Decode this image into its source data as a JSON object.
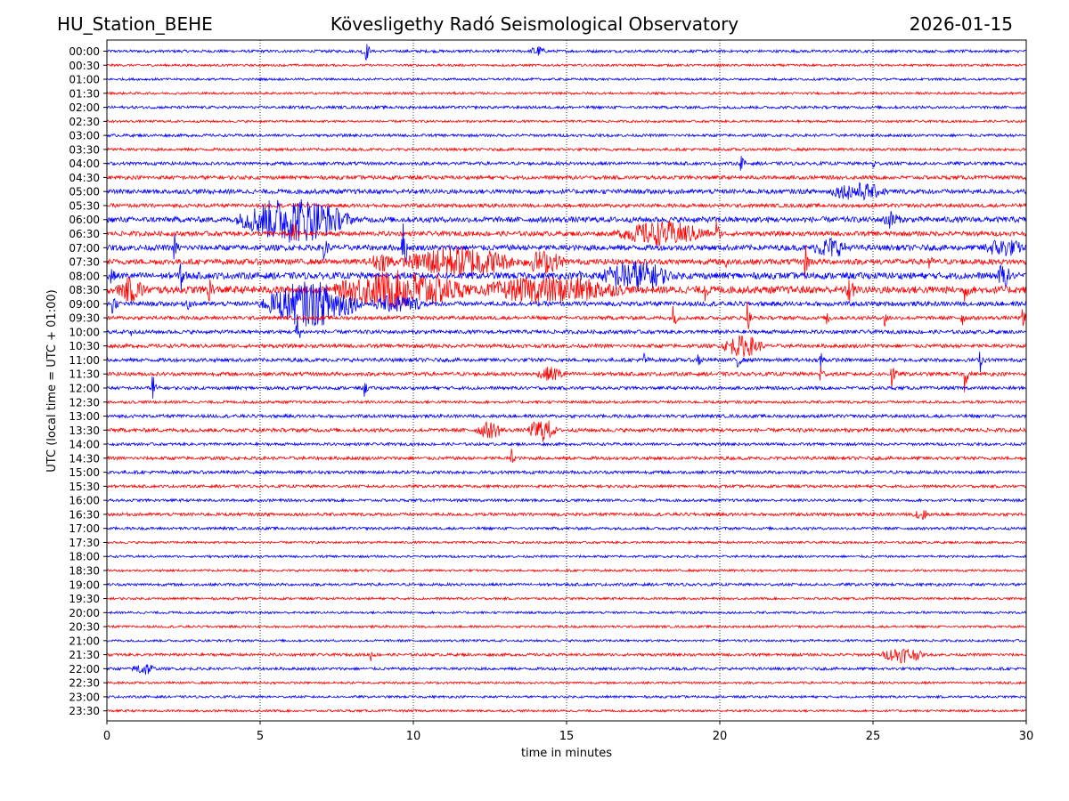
{
  "header": {
    "station": "HU_Station_BEHE",
    "title": "Kövesligethy Radó Seismological Observatory",
    "date": "2026-01-15"
  },
  "chart_data": {
    "type": "line",
    "title": "Kövesligethy Radó Seismological Observatory",
    "xlabel": "time in minutes",
    "ylabel": "UTC (local time = UTC + 01:00)",
    "xlim": [
      0,
      30
    ],
    "xticks": [
      0,
      5,
      10,
      15,
      20,
      25,
      30
    ],
    "grid": "vertical dotted at each x tick",
    "series_colors": [
      "#0000ff",
      "#ff0000"
    ],
    "rows": [
      {
        "label": "00:00",
        "noise": 0.06,
        "events": [
          {
            "t": 8.3,
            "amp": 0.35,
            "dur": 0.3
          },
          {
            "t": 13.8,
            "amp": 0.2,
            "dur": 0.5
          }
        ]
      },
      {
        "label": "00:30",
        "noise": 0.05,
        "events": []
      },
      {
        "label": "01:00",
        "noise": 0.05,
        "events": []
      },
      {
        "label": "01:30",
        "noise": 0.05,
        "events": []
      },
      {
        "label": "02:00",
        "noise": 0.06,
        "events": []
      },
      {
        "label": "02:30",
        "noise": 0.05,
        "events": []
      },
      {
        "label": "03:00",
        "noise": 0.06,
        "events": []
      },
      {
        "label": "03:30",
        "noise": 0.06,
        "events": []
      },
      {
        "label": "04:00",
        "noise": 0.07,
        "events": [
          {
            "t": 20.7,
            "amp": 0.45,
            "dur": 0.1
          },
          {
            "t": 25.0,
            "amp": 0.3,
            "dur": 0.1
          }
        ]
      },
      {
        "label": "04:30",
        "noise": 0.08,
        "events": []
      },
      {
        "label": "05:00",
        "noise": 0.1,
        "events": [
          {
            "t": 23.5,
            "amp": 0.3,
            "dur": 2.0
          }
        ]
      },
      {
        "label": "05:30",
        "noise": 0.08,
        "events": []
      },
      {
        "label": "06:00",
        "noise": 0.12,
        "events": [
          {
            "t": 4.1,
            "amp": 0.9,
            "dur": 4.0
          },
          {
            "t": 25.3,
            "amp": 0.3,
            "dur": 0.6
          }
        ]
      },
      {
        "label": "06:30",
        "noise": 0.1,
        "events": [
          {
            "t": 6.0,
            "amp": 0.4,
            "dur": 0.3
          },
          {
            "t": 16.5,
            "amp": 0.45,
            "dur": 3.3
          },
          {
            "t": 19.9,
            "amp": 0.6,
            "dur": 0.1
          }
        ]
      },
      {
        "label": "07:00",
        "noise": 0.12,
        "events": [
          {
            "t": 2.2,
            "amp": 0.6,
            "dur": 0.1
          },
          {
            "t": 7.1,
            "amp": 0.7,
            "dur": 0.1
          },
          {
            "t": 9.6,
            "amp": 1.2,
            "dur": 0.2
          },
          {
            "t": 23.0,
            "amp": 0.35,
            "dur": 1.2
          },
          {
            "t": 28.5,
            "amp": 0.3,
            "dur": 1.5
          }
        ]
      },
      {
        "label": "07:30",
        "noise": 0.12,
        "events": [
          {
            "t": 8.5,
            "amp": 0.3,
            "dur": 1.0
          },
          {
            "t": 9.5,
            "amp": 0.6,
            "dur": 4.0
          },
          {
            "t": 13.5,
            "amp": 0.4,
            "dur": 1.5
          },
          {
            "t": 20.2,
            "amp": 0.5,
            "dur": 0.1
          },
          {
            "t": 22.8,
            "amp": 0.9,
            "dur": 0.1
          },
          {
            "t": 26.8,
            "amp": 0.5,
            "dur": 0.1
          }
        ]
      },
      {
        "label": "08:00",
        "noise": 0.14,
        "events": [
          {
            "t": 0.1,
            "amp": 0.6,
            "dur": 0.1
          },
          {
            "t": 2.4,
            "amp": 1.0,
            "dur": 0.1
          },
          {
            "t": 15.4,
            "amp": 0.5,
            "dur": 0.1
          },
          {
            "t": 16.0,
            "amp": 0.55,
            "dur": 2.5
          },
          {
            "t": 29.0,
            "amp": 0.4,
            "dur": 0.5
          }
        ]
      },
      {
        "label": "08:30",
        "noise": 0.16,
        "events": [
          {
            "t": 0.3,
            "amp": 0.4,
            "dur": 1.0
          },
          {
            "t": 3.2,
            "amp": 0.4,
            "dur": 0.3
          },
          {
            "t": 7.2,
            "amp": 0.7,
            "dur": 4.8
          },
          {
            "t": 12.0,
            "amp": 0.45,
            "dur": 5.0
          },
          {
            "t": 19.5,
            "amp": 0.5,
            "dur": 0.1
          },
          {
            "t": 24.1,
            "amp": 0.5,
            "dur": 0.3
          },
          {
            "t": 28.0,
            "amp": 0.5,
            "dur": 0.1
          }
        ]
      },
      {
        "label": "09:00",
        "noise": 0.1,
        "events": [
          {
            "t": 0.2,
            "amp": 0.6,
            "dur": 0.1
          },
          {
            "t": 2.6,
            "amp": 0.4,
            "dur": 0.1
          },
          {
            "t": 4.9,
            "amp": 0.9,
            "dur": 3.5
          },
          {
            "t": 8.5,
            "amp": 0.3,
            "dur": 2.0
          }
        ]
      },
      {
        "label": "09:30",
        "noise": 0.08,
        "events": [
          {
            "t": 18.5,
            "amp": 0.5,
            "dur": 0.1
          },
          {
            "t": 20.9,
            "amp": 0.8,
            "dur": 0.1
          },
          {
            "t": 23.5,
            "amp": 0.4,
            "dur": 0.1
          },
          {
            "t": 25.4,
            "amp": 0.4,
            "dur": 0.1
          },
          {
            "t": 27.9,
            "amp": 0.4,
            "dur": 0.1
          },
          {
            "t": 29.9,
            "amp": 0.6,
            "dur": 0.1
          }
        ]
      },
      {
        "label": "10:00",
        "noise": 0.08,
        "events": [
          {
            "t": 0.8,
            "amp": 0.4,
            "dur": 0.1
          },
          {
            "t": 6.2,
            "amp": 1.0,
            "dur": 0.1
          }
        ]
      },
      {
        "label": "10:30",
        "noise": 0.08,
        "events": [
          {
            "t": 20.0,
            "amp": 0.4,
            "dur": 1.5
          }
        ]
      },
      {
        "label": "11:00",
        "noise": 0.08,
        "events": [
          {
            "t": 17.5,
            "amp": 0.6,
            "dur": 0.1
          },
          {
            "t": 19.3,
            "amp": 0.4,
            "dur": 0.1
          },
          {
            "t": 20.6,
            "amp": 0.4,
            "dur": 0.1
          },
          {
            "t": 23.3,
            "amp": 0.5,
            "dur": 0.1
          },
          {
            "t": 28.5,
            "amp": 0.5,
            "dur": 0.1
          }
        ]
      },
      {
        "label": "11:30",
        "noise": 0.08,
        "events": [
          {
            "t": 14.0,
            "amp": 0.25,
            "dur": 1.0
          },
          {
            "t": 23.3,
            "amp": 0.4,
            "dur": 0.1
          },
          {
            "t": 25.6,
            "amp": 1.0,
            "dur": 0.1
          },
          {
            "t": 28.0,
            "amp": 0.8,
            "dur": 0.1
          }
        ]
      },
      {
        "label": "12:00",
        "noise": 0.07,
        "events": [
          {
            "t": 1.5,
            "amp": 0.7,
            "dur": 0.1
          },
          {
            "t": 8.4,
            "amp": 0.4,
            "dur": 0.1
          }
        ]
      },
      {
        "label": "12:30",
        "noise": 0.06,
        "events": []
      },
      {
        "label": "13:00",
        "noise": 0.07,
        "events": []
      },
      {
        "label": "13:30",
        "noise": 0.08,
        "events": [
          {
            "t": 12.0,
            "amp": 0.3,
            "dur": 1.0
          },
          {
            "t": 13.7,
            "amp": 0.45,
            "dur": 1.0
          }
        ]
      },
      {
        "label": "14:00",
        "noise": 0.06,
        "events": []
      },
      {
        "label": "14:30",
        "noise": 0.07,
        "events": [
          {
            "t": 13.2,
            "amp": 0.4,
            "dur": 0.1
          }
        ]
      },
      {
        "label": "15:00",
        "noise": 0.07,
        "events": []
      },
      {
        "label": "15:30",
        "noise": 0.06,
        "events": []
      },
      {
        "label": "16:00",
        "noise": 0.06,
        "events": []
      },
      {
        "label": "16:30",
        "noise": 0.07,
        "events": [
          {
            "t": 26.3,
            "amp": 0.25,
            "dur": 0.5
          }
        ]
      },
      {
        "label": "17:00",
        "noise": 0.06,
        "events": []
      },
      {
        "label": "17:30",
        "noise": 0.05,
        "events": []
      },
      {
        "label": "18:00",
        "noise": 0.05,
        "events": []
      },
      {
        "label": "18:30",
        "noise": 0.05,
        "events": []
      },
      {
        "label": "19:00",
        "noise": 0.06,
        "events": []
      },
      {
        "label": "19:30",
        "noise": 0.05,
        "events": []
      },
      {
        "label": "20:00",
        "noise": 0.05,
        "events": []
      },
      {
        "label": "20:30",
        "noise": 0.05,
        "events": []
      },
      {
        "label": "21:00",
        "noise": 0.05,
        "events": []
      },
      {
        "label": "21:30",
        "noise": 0.06,
        "events": [
          {
            "t": 8.6,
            "amp": 0.3,
            "dur": 0.1
          },
          {
            "t": 25.2,
            "amp": 0.3,
            "dur": 1.5
          }
        ]
      },
      {
        "label": "22:00",
        "noise": 0.06,
        "events": [
          {
            "t": 0.8,
            "amp": 0.25,
            "dur": 0.8
          }
        ]
      },
      {
        "label": "22:30",
        "noise": 0.05,
        "events": []
      },
      {
        "label": "23:00",
        "noise": 0.05,
        "events": []
      },
      {
        "label": "23:30",
        "noise": 0.05,
        "events": []
      }
    ]
  }
}
